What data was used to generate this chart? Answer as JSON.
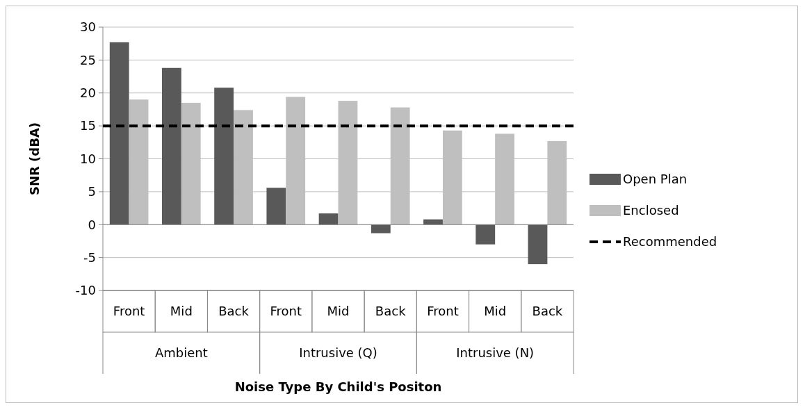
{
  "chart_data": {
    "type": "bar",
    "xlabel": "Noise Type By Child's Positon",
    "ylabel": "SNR (dBA)",
    "categories": [
      "Front",
      "Mid",
      "Back",
      "Front",
      "Mid",
      "Back",
      "Front",
      "Mid",
      "Back"
    ],
    "annotations": [
      "Ambient",
      "Intrusive (Q)",
      "Intrusive (N)"
    ],
    "series": [
      {
        "name": "Open Plan",
        "color": "#595959",
        "values": [
          27.7,
          23.8,
          20.8,
          5.6,
          1.7,
          -1.3,
          0.8,
          -3.0,
          -6.0
        ]
      },
      {
        "name": "Enclosed",
        "color": "#bfbfbf",
        "values": [
          19.0,
          18.5,
          17.4,
          19.4,
          18.8,
          17.8,
          14.3,
          13.8,
          12.7
        ]
      }
    ],
    "ylim": [
      -10,
      30
    ],
    "yticks": [
      -10,
      -5,
      0,
      5,
      10,
      15,
      20,
      25,
      30
    ],
    "grid": "y",
    "legend": "right",
    "ref_lines": [
      {
        "axis": "y",
        "value": 15,
        "label": "Recommended",
        "color": "#000000",
        "line_style": "dashed"
      }
    ]
  }
}
